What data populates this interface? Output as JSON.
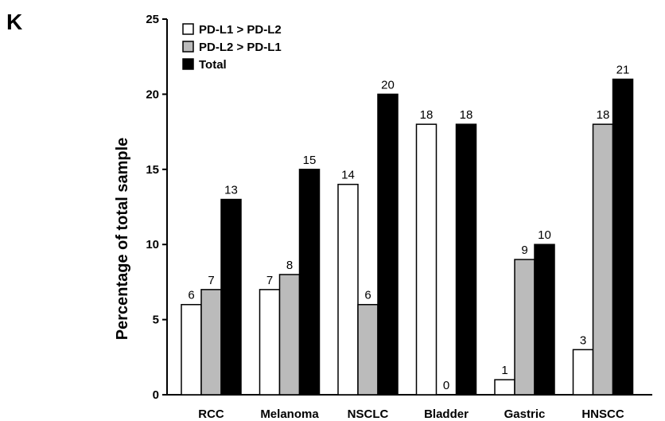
{
  "panel_label": "K",
  "chart_data": {
    "type": "bar",
    "categories": [
      "RCC",
      "Melanoma",
      "NSCLC",
      "Bladder",
      "Gastric",
      "HNSCC"
    ],
    "series": [
      {
        "name": "PD-L1 > PD-L2",
        "values": [
          6,
          7,
          14,
          18,
          1,
          3
        ],
        "color": "#ffffff"
      },
      {
        "name": "PD-L2 > PD-L1",
        "values": [
          7,
          8,
          6,
          0,
          9,
          18
        ],
        "color": "#bbbbbb"
      },
      {
        "name": "Total",
        "values": [
          13,
          15,
          20,
          18,
          10,
          21
        ],
        "color": "#000000"
      }
    ],
    "title": "",
    "xlabel": "",
    "ylabel": "Percentage of total sample",
    "ylim": [
      0,
      25
    ],
    "yticks": [
      0,
      5,
      10,
      15,
      20,
      25
    ],
    "grid": false,
    "legend_position": "top-left",
    "data_labels": true
  }
}
